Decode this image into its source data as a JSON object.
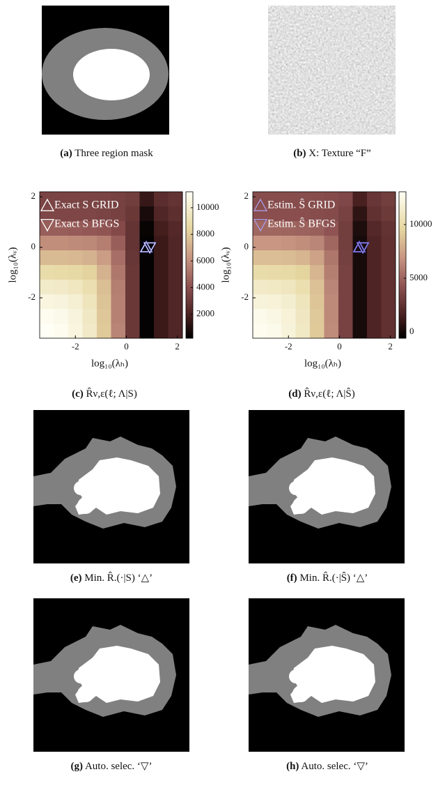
{
  "panels": [
    {
      "label": "(a)",
      "caption": "Three region mask"
    },
    {
      "label": "(b)",
      "caption": "X: Texture “F”"
    },
    {
      "label": "(c)",
      "caption": "R̂ν,ε(ℓ; Λ|S)"
    },
    {
      "label": "(d)",
      "caption": "R̂ν,ε(ℓ; Λ|Ŝ)"
    },
    {
      "label": "(e)",
      "caption": "Min. R̂.(·|S) ‘△’"
    },
    {
      "label": "(f)",
      "caption": "Min. R̂.(·|Ŝ) ‘△’"
    },
    {
      "label": "(g)",
      "caption": "Auto. selec. ‘▽’"
    },
    {
      "label": "(h)",
      "caption": "Auto. selec. ‘▽’"
    }
  ],
  "chart_data": [
    {
      "type": "heatmap",
      "xlabel": "log₁₀(λₕ)",
      "ylabel": "log₁₀(λᵥ)",
      "xlim": [
        -3.4,
        2.2
      ],
      "ylim": [
        -3.6,
        2.2
      ],
      "xticks": [
        -2,
        0,
        2
      ],
      "yticks": [
        -2,
        0,
        2
      ],
      "x": [
        -3.12,
        -2.56,
        -2.0,
        -1.44,
        -0.88,
        -0.32,
        0.24,
        0.8,
        1.36,
        1.92
      ],
      "y": [
        1.91,
        1.33,
        0.75,
        0.17,
        -0.41,
        -0.99,
        -1.57,
        -2.15,
        -2.73,
        -3.31
      ],
      "values": [
        [
          3500,
          3500,
          3500,
          3500,
          3500,
          3400,
          3200,
          1500,
          2500,
          2800
        ],
        [
          3600,
          3600,
          3600,
          3600,
          3500,
          3400,
          3000,
          800,
          2200,
          2600
        ],
        [
          4500,
          4500,
          4400,
          4300,
          4200,
          3800,
          2800,
          400,
          1800,
          2300
        ],
        [
          6000,
          6000,
          5900,
          5800,
          5500,
          4500,
          2800,
          300,
          1600,
          2200
        ],
        [
          7500,
          7500,
          7400,
          7200,
          6500,
          5000,
          2900,
          300,
          1600,
          2200
        ],
        [
          8800,
          8700,
          8600,
          8300,
          7200,
          5300,
          3000,
          300,
          1600,
          2200
        ],
        [
          9800,
          9700,
          9500,
          9000,
          7600,
          5500,
          3000,
          300,
          1600,
          2200
        ],
        [
          10500,
          10400,
          10100,
          9400,
          7800,
          5600,
          3000,
          300,
          1600,
          2200
        ],
        [
          11000,
          10800,
          10400,
          9600,
          7900,
          5600,
          3000,
          300,
          1600,
          2200
        ],
        [
          11200,
          11000,
          10500,
          9700,
          8000,
          5700,
          3000,
          300,
          1600,
          2200
        ]
      ],
      "clim": [
        200,
        11200
      ],
      "cticks": [
        2000,
        4000,
        6000,
        8000,
        10000
      ],
      "series": [
        {
          "name": "Exact S GRID",
          "marker": "up",
          "color": "#ffffff",
          "x": [
            0.78
          ],
          "y": [
            0.0
          ]
        },
        {
          "name": "Exact S BFGS",
          "marker": "down",
          "color": "#ffffff",
          "x": [
            0.92
          ],
          "y": [
            0.0
          ]
        }
      ]
    },
    {
      "type": "heatmap",
      "xlabel": "log₁₀(λₕ)",
      "ylabel": "log₁₀(λᵥ)",
      "xlim": [
        -3.4,
        2.2
      ],
      "ylim": [
        -3.6,
        2.2
      ],
      "xticks": [
        -2,
        0,
        2
      ],
      "yticks": [
        -2,
        0,
        2
      ],
      "x": [
        -3.12,
        -2.56,
        -2.0,
        -1.44,
        -0.88,
        -0.32,
        0.24,
        0.8,
        1.36,
        1.92
      ],
      "y": [
        1.91,
        1.33,
        0.75,
        0.17,
        -0.41,
        -0.99,
        -1.57,
        -2.15,
        -2.73,
        -3.31
      ],
      "values": [
        [
          4000,
          4000,
          4000,
          4000,
          4000,
          3900,
          3700,
          1600,
          2800,
          3200
        ],
        [
          4100,
          4100,
          4100,
          4100,
          4000,
          3900,
          3400,
          800,
          2500,
          3000
        ],
        [
          5100,
          5100,
          5000,
          4900,
          4800,
          4300,
          3200,
          300,
          2000,
          2600
        ],
        [
          6900,
          6900,
          6800,
          6600,
          6300,
          5100,
          3200,
          100,
          1800,
          2500
        ],
        [
          8600,
          8600,
          8500,
          8200,
          7400,
          5700,
          3300,
          100,
          1800,
          2500
        ],
        [
          10100,
          10000,
          9900,
          9500,
          8200,
          6000,
          3400,
          100,
          1800,
          2500
        ],
        [
          11200,
          11100,
          10900,
          10300,
          8700,
          6300,
          3400,
          100,
          1800,
          2500
        ],
        [
          12000,
          11900,
          11600,
          10800,
          8900,
          6400,
          3400,
          100,
          1800,
          2500
        ],
        [
          12600,
          12400,
          11900,
          11000,
          9000,
          6400,
          3400,
          100,
          1800,
          2500
        ],
        [
          12800,
          12600,
          12000,
          11100,
          9100,
          6500,
          3400,
          100,
          1800,
          2500
        ]
      ],
      "clim": [
        -580,
        13050
      ],
      "cticks": [
        0,
        5000,
        10000
      ],
      "series": [
        {
          "name": "Estim. Ŝ GRID",
          "marker": "up",
          "color": "#a99be8",
          "x": [
            0.78
          ],
          "y": [
            0.0
          ]
        },
        {
          "name": "Estim. Ŝ BFGS",
          "marker": "down",
          "color": "#a99be8",
          "x": [
            0.92
          ],
          "y": [
            0.0
          ]
        }
      ]
    }
  ]
}
